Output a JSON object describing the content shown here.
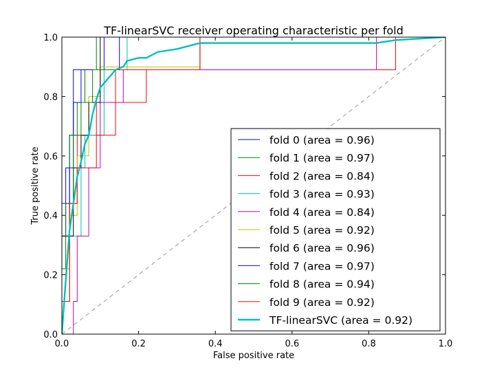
{
  "chart_data": {
    "type": "line",
    "title": "TF-linearSVC receiver operating characteristic per fold",
    "xlabel": "False positive rate",
    "ylabel": "True positive rate",
    "xlim": [
      0,
      1
    ],
    "ylim": [
      0,
      1
    ],
    "xticks": [
      "0.0",
      "0.2",
      "0.4",
      "0.6",
      "0.8",
      "1.0"
    ],
    "yticks": [
      "0.0",
      "0.2",
      "0.4",
      "0.6",
      "0.8",
      "1.0"
    ],
    "grid": false,
    "legend_position": "lower-right",
    "diagonal_reference": {
      "x": [
        0,
        1
      ],
      "y": [
        0,
        1
      ],
      "color": "#999999",
      "style": "dashed"
    },
    "series": [
      {
        "name": "fold 0 (area = 0.96)",
        "color": "#0000ff",
        "x": [
          0,
          0,
          0.01,
          0.01,
          0.02,
          0.02,
          0.03,
          0.03,
          0.06,
          0.06,
          0.11,
          0.11,
          0.13,
          0.13,
          1.0
        ],
        "y": [
          0,
          0.33,
          0.33,
          0.56,
          0.56,
          0.67,
          0.67,
          0.89,
          0.89,
          0.89,
          0.89,
          1.0,
          1.0,
          1.0,
          1.0
        ]
      },
      {
        "name": "fold 1 (area = 0.97)",
        "color": "#008000",
        "x": [
          0,
          0,
          0.02,
          0.02,
          0.04,
          0.04,
          0.06,
          0.06,
          0.09,
          0.09,
          0.22,
          0.22,
          1.0
        ],
        "y": [
          0,
          0.33,
          0.33,
          0.67,
          0.67,
          0.78,
          0.78,
          0.89,
          0.89,
          1.0,
          1.0,
          1.0,
          1.0
        ]
      },
      {
        "name": "fold 2 (area = 0.84)",
        "color": "#ff0000",
        "x": [
          0,
          0,
          0.02,
          0.02,
          0.04,
          0.04,
          0.09,
          0.09,
          0.11,
          0.11,
          0.22,
          0.22,
          0.87,
          0.87,
          1.0
        ],
        "y": [
          0,
          0.22,
          0.22,
          0.44,
          0.44,
          0.67,
          0.67,
          0.78,
          0.78,
          0.78,
          0.78,
          0.89,
          0.89,
          1.0,
          1.0
        ]
      },
      {
        "name": "fold 3 (area = 0.93)",
        "color": "#00bfbf",
        "x": [
          0,
          0,
          0.02,
          0.02,
          0.05,
          0.05,
          0.06,
          0.06,
          0.11,
          0.11,
          0.17,
          0.17,
          1.0
        ],
        "y": [
          0,
          0.11,
          0.11,
          0.33,
          0.33,
          0.56,
          0.56,
          0.67,
          0.67,
          0.89,
          0.89,
          1.0,
          1.0
        ]
      },
      {
        "name": "fold 4 (area = 0.84)",
        "color": "#bf00bf",
        "x": [
          0,
          0.03,
          0.03,
          0.04,
          0.04,
          0.07,
          0.07,
          0.1,
          0.1,
          0.16,
          0.16,
          0.82,
          0.82,
          1.0
        ],
        "y": [
          0,
          0,
          0.11,
          0.11,
          0.33,
          0.33,
          0.56,
          0.56,
          0.78,
          0.78,
          0.89,
          0.89,
          1.0,
          1.0
        ]
      },
      {
        "name": "fold 5 (area = 0.92)",
        "color": "#bfbf00",
        "x": [
          0,
          0,
          0.02,
          0.02,
          0.04,
          0.04,
          0.07,
          0.07,
          0.1,
          0.1,
          0.36,
          0.36,
          1.0
        ],
        "y": [
          0,
          0.22,
          0.22,
          0.4,
          0.4,
          0.6,
          0.6,
          0.8,
          0.8,
          0.9,
          0.9,
          1.0,
          1.0
        ]
      },
      {
        "name": "fold 6 (area = 0.96)",
        "color": "#000000",
        "x": [
          0,
          0,
          0.03,
          0.03,
          0.05,
          0.05,
          0.07,
          0.07,
          0.1,
          0.1,
          1.0
        ],
        "y": [
          0,
          0.33,
          0.33,
          0.56,
          0.56,
          0.67,
          0.67,
          0.78,
          0.78,
          1.0,
          1.0
        ]
      },
      {
        "name": "fold 7 (area = 0.97)",
        "color": "#0000ff",
        "x": [
          0,
          0,
          0.02,
          0.02,
          0.03,
          0.03,
          0.05,
          0.05,
          0.09,
          0.09,
          0.15,
          0.15,
          1.0
        ],
        "y": [
          0,
          0.44,
          0.44,
          0.56,
          0.56,
          0.78,
          0.78,
          0.89,
          0.89,
          0.89,
          0.89,
          1.0,
          1.0
        ]
      },
      {
        "name": "fold 8 (area = 0.94)",
        "color": "#008000",
        "x": [
          0,
          0,
          0.01,
          0.01,
          0.03,
          0.03,
          0.05,
          0.05,
          0.08,
          0.08,
          0.36,
          0.36,
          1.0
        ],
        "y": [
          0,
          0.22,
          0.22,
          0.44,
          0.44,
          0.67,
          0.67,
          0.78,
          0.78,
          0.89,
          0.89,
          1.0,
          1.0
        ]
      },
      {
        "name": "fold 9 (area = 0.92)",
        "color": "#ff0000",
        "x": [
          0,
          0,
          0.02,
          0.02,
          0.04,
          0.04,
          0.09,
          0.09,
          0.14,
          0.14,
          0.36,
          0.36,
          1.0
        ],
        "y": [
          0,
          0.11,
          0.11,
          0.44,
          0.44,
          0.56,
          0.56,
          0.67,
          0.67,
          0.89,
          0.89,
          1.0,
          1.0
        ]
      },
      {
        "name": "TF-linearSVC (area = 0.92)",
        "color": "#00bfbf",
        "bold": true,
        "x": [
          0,
          0.01,
          0.02,
          0.03,
          0.04,
          0.05,
          0.06,
          0.07,
          0.08,
          0.09,
          0.1,
          0.12,
          0.14,
          0.16,
          0.17,
          0.2,
          0.22,
          0.25,
          0.3,
          0.36,
          0.5,
          0.7,
          0.82,
          0.87,
          1.0
        ],
        "y": [
          0,
          0.18,
          0.35,
          0.44,
          0.53,
          0.58,
          0.64,
          0.67,
          0.74,
          0.79,
          0.83,
          0.86,
          0.89,
          0.9,
          0.92,
          0.93,
          0.93,
          0.95,
          0.96,
          0.98,
          0.98,
          0.98,
          0.98,
          0.99,
          1.0
        ]
      }
    ]
  }
}
